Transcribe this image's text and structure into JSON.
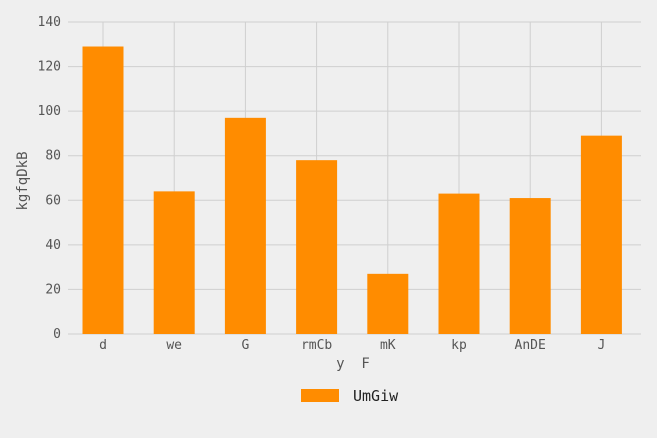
{
  "chart_data": {
    "type": "bar",
    "categories": [
      "d",
      "we",
      "G",
      "rmCb",
      "mK",
      "kp",
      "AnDE",
      "J"
    ],
    "series": [
      {
        "name": "UmGiw",
        "values": [
          129,
          64,
          97,
          78,
          27,
          63,
          61,
          89
        ],
        "color": "#ff8c00"
      }
    ],
    "xlabel": "y  F",
    "ylabel": "kgfqDkB",
    "ylim": [
      0,
      140
    ],
    "yticks": [
      0,
      20,
      40,
      60,
      80,
      100,
      120,
      140
    ],
    "grid": true,
    "legend": "bottom-center"
  }
}
